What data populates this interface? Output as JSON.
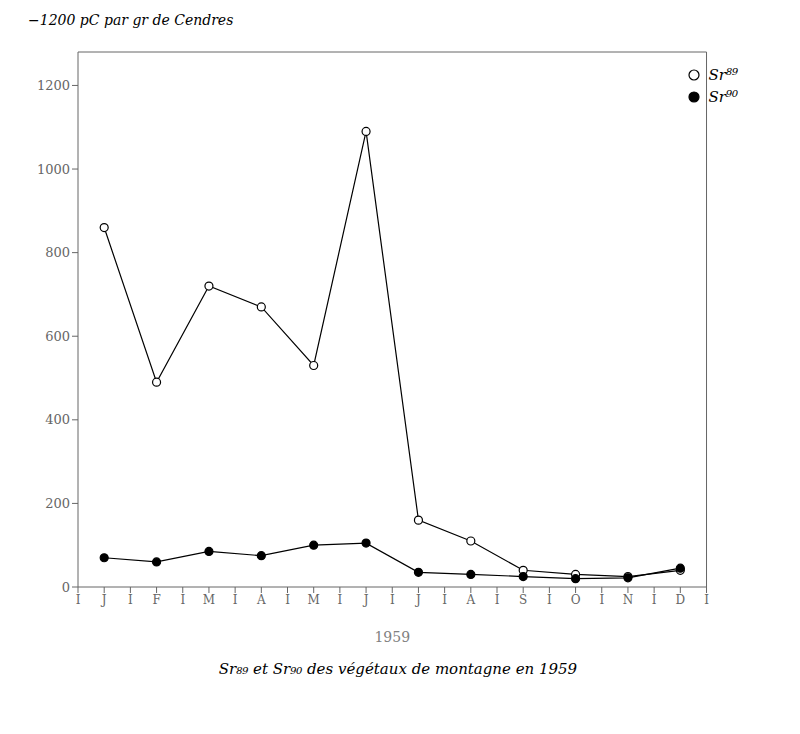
{
  "chart_data": {
    "type": "line",
    "title": "Sr₈₉ et Sr₉₀ des végétaux de montagne en 1959",
    "xlabel": "1959",
    "ylabel": "−1200  pC par gr de Cendres",
    "categories": [
      "I",
      "J",
      "I",
      "F",
      "I",
      "M",
      "I",
      "A",
      "I",
      "M",
      "I",
      "J",
      "I",
      "J",
      "I",
      "A",
      "I",
      "S",
      "I",
      "O",
      "I",
      "N",
      "I",
      "D",
      "I"
    ],
    "series": [
      {
        "name": "Sr⁸⁹",
        "color": "#000000",
        "marker": "open_circle",
        "line_style": "solid",
        "values": [
          null,
          860,
          null,
          490,
          null,
          720,
          null,
          670,
          null,
          530,
          null,
          1090,
          null,
          160,
          null,
          110,
          null,
          40,
          null,
          30,
          null,
          25,
          null,
          40,
          null
        ]
      },
      {
        "name": "Sr⁹⁰",
        "color": "#000000",
        "marker": "filled_circle",
        "line_style": "solid",
        "values": [
          null,
          70,
          null,
          60,
          null,
          85,
          null,
          75,
          null,
          100,
          null,
          105,
          null,
          35,
          null,
          30,
          null,
          25,
          null,
          20,
          null,
          22,
          null,
          45,
          null
        ]
      }
    ],
    "ylim": [
      0,
      1280
    ],
    "yticks": [
      0,
      200,
      400,
      600,
      800,
      1000,
      1200
    ],
    "grid": false,
    "legend": "upper right"
  }
}
